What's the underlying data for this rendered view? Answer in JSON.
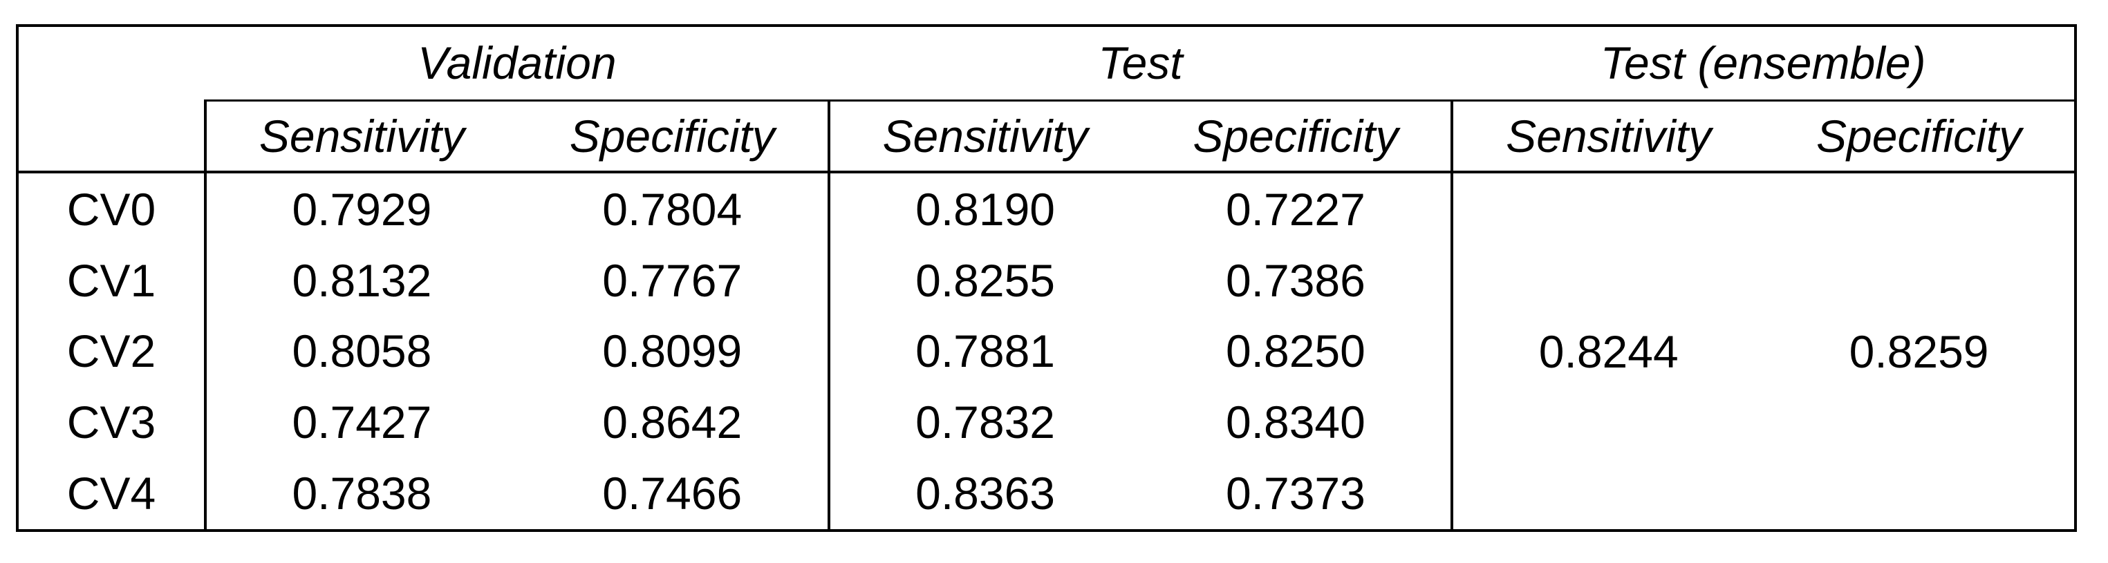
{
  "table": {
    "group_headers": [
      {
        "label": "Validation"
      },
      {
        "label": "Test"
      },
      {
        "label": "Test (ensemble)"
      }
    ],
    "sub_headers": [
      "Sensitivity",
      "Specificity",
      "Sensitivity",
      "Specificity",
      "Sensitivity",
      "Specificity"
    ],
    "rows": [
      {
        "label": "CV0",
        "cells": [
          "0.7929",
          "0.7804",
          "0.8190",
          "0.7227"
        ]
      },
      {
        "label": "CV1",
        "cells": [
          "0.8132",
          "0.7767",
          "0.8255",
          "0.7386"
        ]
      },
      {
        "label": "CV2",
        "cells": [
          "0.8058",
          "0.8099",
          "0.7881",
          "0.8250"
        ]
      },
      {
        "label": "CV3",
        "cells": [
          "0.7427",
          "0.8642",
          "0.7832",
          "0.8340"
        ]
      },
      {
        "label": "CV4",
        "cells": [
          "0.7838",
          "0.7466",
          "0.8363",
          "0.7373"
        ]
      }
    ],
    "ensemble": {
      "sensitivity": "0.8244",
      "specificity": "0.8259"
    },
    "emphasis": {
      "bold_test_row": "CV3",
      "bold_ensemble_values": true
    }
  }
}
